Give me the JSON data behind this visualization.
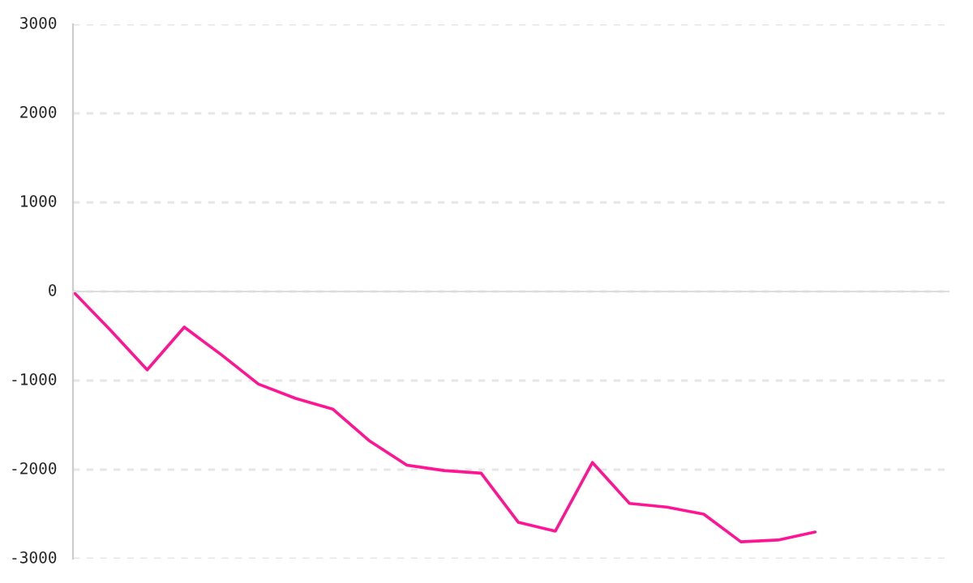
{
  "chart_data": {
    "type": "line",
    "categories": [
      null,
      null,
      null,
      null,
      null,
      null,
      null,
      null,
      null,
      null,
      null,
      null,
      null,
      null,
      null,
      null,
      null,
      null,
      null,
      null,
      null
    ],
    "series": [
      {
        "color": "#ff1493",
        "values": [
          0,
          -430,
          -880,
          -400,
          -710,
          -1040,
          -1200,
          -1320,
          -1680,
          -1950,
          -2010,
          -2040,
          -2590,
          -2690,
          -1920,
          -2380,
          -2420,
          -2500,
          -2810,
          -2790,
          -2700
        ]
      }
    ],
    "ylim": [
      -3000,
      3000
    ],
    "yticks": [
      -3000,
      -2000,
      -1000,
      0,
      1000,
      2000,
      3000
    ],
    "grid": "y",
    "marker": "none",
    "line_style": "solid",
    "legend": false
  }
}
